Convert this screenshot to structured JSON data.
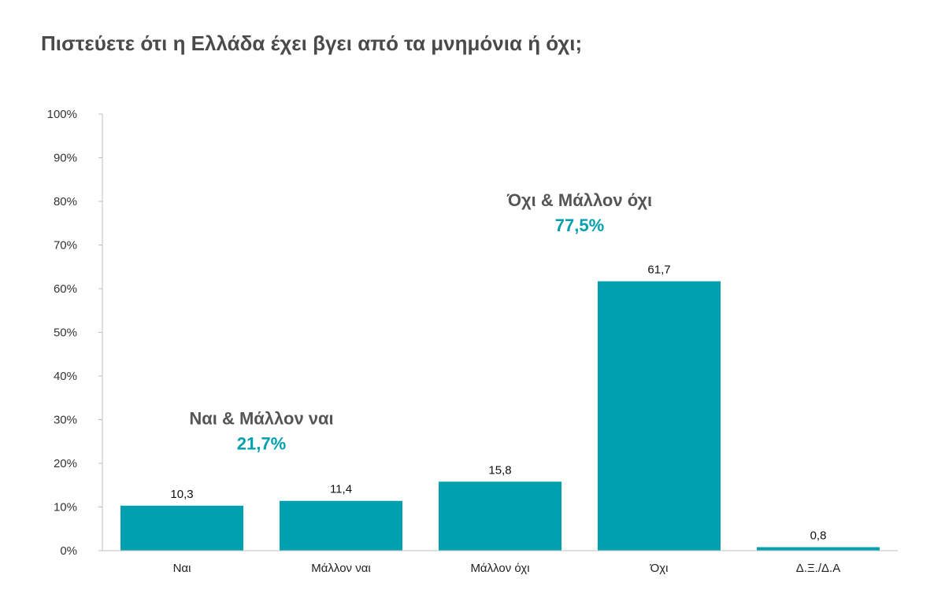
{
  "chart_data": {
    "type": "bar",
    "title": "Πιστεύετε ότι η Ελλάδα έχει βγει από τα μνημόνια ή όχι;",
    "categories": [
      "Ναι",
      "Μάλλον ναι",
      "Μάλλον όχι",
      "Όχι",
      "Δ.Ξ./Δ.Α"
    ],
    "values": [
      10.3,
      11.4,
      15.8,
      61.7,
      0.8
    ],
    "data_labels": [
      "10,3",
      "11,4",
      "15,8",
      "61,7",
      "0,8"
    ],
    "ylim": [
      0,
      100
    ],
    "yticks": [
      0,
      10,
      20,
      30,
      40,
      50,
      60,
      70,
      80,
      90,
      100
    ],
    "ytick_labels": [
      "0%",
      "10%",
      "20%",
      "30%",
      "40%",
      "50%",
      "60%",
      "70%",
      "80%",
      "90%",
      "100%"
    ],
    "xlabel": "",
    "ylabel": "",
    "grid": false,
    "bar_color": "#00A0AE",
    "annotations": [
      {
        "title": "Ναι &  Μάλλον ναι",
        "value": "21,7%",
        "anchor_categories": [
          "Ναι",
          "Μάλλον ναι"
        ],
        "level": 30
      },
      {
        "title": "Όχι &  Μάλλον όχι",
        "value": "77,5%",
        "anchor_categories": [
          "Μάλλον όχι",
          "Όχι"
        ],
        "level": 80
      }
    ],
    "annotation_value_color": "#00A0AE"
  }
}
